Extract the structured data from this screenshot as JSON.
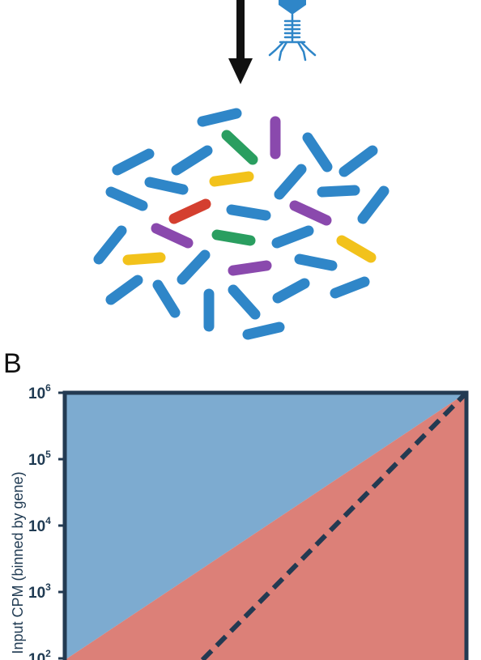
{
  "panel_label": "B",
  "chart_data": {
    "type": "area",
    "ylabel": "Input CPM (binned by gene)",
    "y_scale": "log",
    "y_ticks": [
      {
        "base": "10",
        "exp": "6"
      },
      {
        "base": "10",
        "exp": "5"
      },
      {
        "base": "10",
        "exp": "4"
      },
      {
        "base": "10",
        "exp": "3"
      },
      {
        "base": "10",
        "exp": "2"
      }
    ],
    "regions": [
      {
        "color": "#7dabd0"
      },
      {
        "color": "#dc8078"
      }
    ],
    "diagonal_line": {
      "style": "dashed",
      "color": "#233a52"
    },
    "frame_color": "#233a52"
  },
  "illustration": {
    "arrow_color": "#111111",
    "phage_color": "#2f86c8",
    "bacteria_colors": {
      "blue": "#2f86c8",
      "green": "#2a9e60",
      "purple": "#8a49ad",
      "yellow": "#f2c21b",
      "red": "#d43f2f"
    }
  }
}
